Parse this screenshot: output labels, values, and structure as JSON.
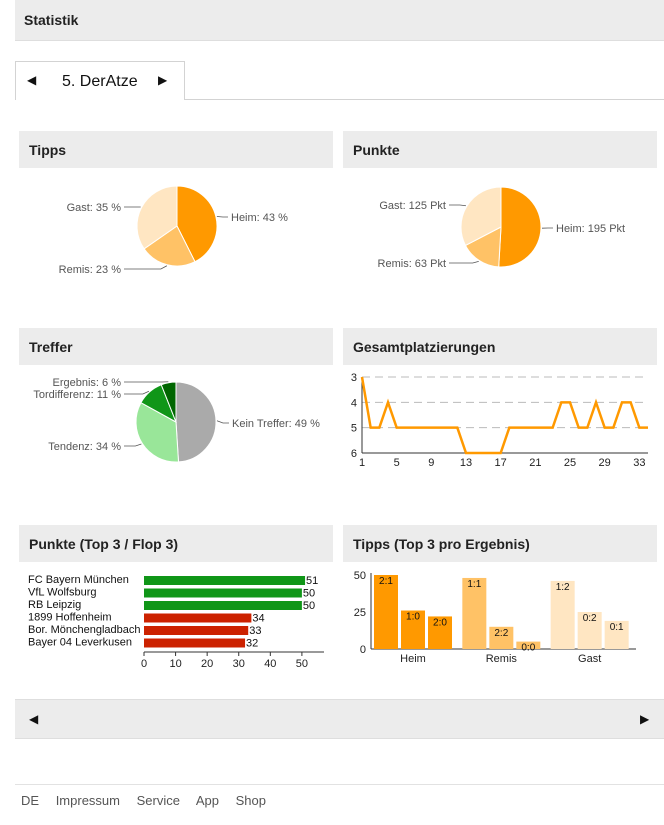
{
  "header": {
    "title": "Statistik"
  },
  "nav": {
    "prev_arrow": "◀",
    "next_arrow": "▶",
    "current": "5. DerAtze"
  },
  "pager": {
    "prev_arrow": "◀",
    "next_arrow": "▶"
  },
  "footer": {
    "links": [
      "DE",
      "Impressum",
      "Service",
      "App",
      "Shop"
    ]
  },
  "colors": {
    "heim": "#ff9900",
    "remis": "#ffc266",
    "gast": "#ffe6c2",
    "kein": "#aaaaaa",
    "tendenz": "#99e699",
    "tordifferenz": "#109618",
    "ergebnis": "#006600",
    "top": "#109618",
    "flop": "#cc2200",
    "line": "#ff9900"
  },
  "panels": {
    "tipps": {
      "title": "Tipps"
    },
    "punkte": {
      "title": "Punkte"
    },
    "treffer": {
      "title": "Treffer"
    },
    "gesamt": {
      "title": "Gesamtplatzierungen"
    },
    "topflop": {
      "title": "Punkte (Top 3 / Flop 3)"
    },
    "tipps_top3": {
      "title": "Tipps (Top 3 pro Ergebnis)"
    }
  },
  "chart_data": [
    {
      "id": "tipps",
      "type": "pie",
      "slices": [
        {
          "label": "Heim: 43 %",
          "value": 43,
          "color": "#ff9900"
        },
        {
          "label": "Remis: 23 %",
          "value": 23,
          "color": "#ffc266"
        },
        {
          "label": "Gast: 35 %",
          "value": 35,
          "color": "#ffe6c2"
        }
      ]
    },
    {
      "id": "punkte",
      "type": "pie",
      "slices": [
        {
          "label": "Heim: 195 Pkt",
          "value": 195,
          "color": "#ff9900"
        },
        {
          "label": "Remis: 63 Pkt",
          "value": 63,
          "color": "#ffc266"
        },
        {
          "label": "Gast: 125 Pkt",
          "value": 125,
          "color": "#ffe6c2"
        }
      ]
    },
    {
      "id": "treffer",
      "type": "pie",
      "slices": [
        {
          "label": "Kein Treffer: 49 %",
          "value": 49,
          "color": "#aaaaaa"
        },
        {
          "label": "Tendenz: 34 %",
          "value": 34,
          "color": "#99e699"
        },
        {
          "label": "Tordifferenz: 11 %",
          "value": 11,
          "color": "#109618"
        },
        {
          "label": "Ergebnis: 6 %",
          "value": 6,
          "color": "#006600"
        }
      ]
    },
    {
      "id": "gesamt",
      "type": "line",
      "x": [
        1,
        2,
        3,
        4,
        5,
        6,
        7,
        8,
        9,
        10,
        11,
        12,
        13,
        14,
        15,
        16,
        17,
        18,
        19,
        20,
        21,
        22,
        23,
        24,
        25,
        26,
        27,
        28,
        29,
        30,
        31,
        32,
        33,
        34
      ],
      "values": [
        3,
        5,
        5,
        4,
        5,
        5,
        5,
        5,
        5,
        5,
        5,
        5,
        6,
        6,
        6,
        6,
        6,
        5,
        5,
        5,
        5,
        5,
        5,
        4,
        4,
        5,
        5,
        4,
        5,
        5,
        4,
        4,
        5,
        5
      ],
      "xticks": [
        1,
        5,
        9,
        13,
        17,
        21,
        25,
        29,
        33
      ],
      "yticks": [
        3,
        4,
        5,
        6
      ],
      "ylim": [
        3,
        6
      ],
      "y_reversed": true
    },
    {
      "id": "topflop",
      "type": "bar",
      "orientation": "horizontal",
      "categories": [
        "FC Bayern München",
        "VfL Wolfsburg",
        "RB Leipzig",
        "1899 Hoffenheim",
        "Bor. Mönchengladbach",
        "Bayer 04 Leverkusen"
      ],
      "values": [
        51,
        50,
        50,
        34,
        33,
        32
      ],
      "groups": [
        "top",
        "top",
        "top",
        "flop",
        "flop",
        "flop"
      ],
      "xticks": [
        0,
        10,
        20,
        30,
        40,
        50
      ],
      "xlim": [
        0,
        57
      ]
    },
    {
      "id": "tipps_top3",
      "type": "bar",
      "categories": [
        "Heim",
        "Remis",
        "Gast"
      ],
      "bars": [
        {
          "group": "Heim",
          "label": "2:1",
          "value": 50
        },
        {
          "group": "Heim",
          "label": "1:0",
          "value": 26
        },
        {
          "group": "Heim",
          "label": "2:0",
          "value": 22
        },
        {
          "group": "Remis",
          "label": "1:1",
          "value": 48
        },
        {
          "group": "Remis",
          "label": "2:2",
          "value": 15
        },
        {
          "group": "Remis",
          "label": "0:0",
          "value": 5
        },
        {
          "group": "Gast",
          "label": "1:2",
          "value": 46
        },
        {
          "group": "Gast",
          "label": "0:2",
          "value": 25
        },
        {
          "group": "Gast",
          "label": "0:1",
          "value": 19
        }
      ],
      "yticks": [
        0,
        25,
        50
      ],
      "ylim": [
        0,
        50
      ]
    }
  ]
}
